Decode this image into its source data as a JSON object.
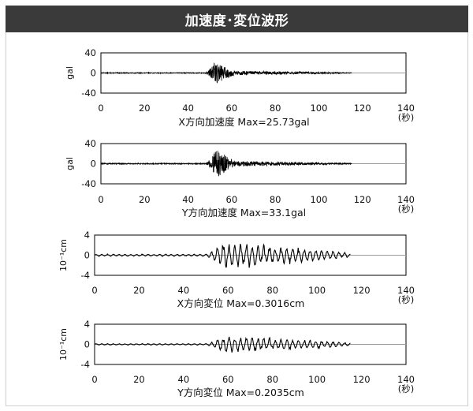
{
  "header": {
    "title": "加速度･変位波形"
  },
  "colors": {
    "header_bg": "#3a3a3a",
    "signal": "#000000",
    "axis": "#000000",
    "zero_line": "#999999"
  },
  "chart_data": [
    {
      "type": "line",
      "title": "X方向加速度 Max=25.73gal",
      "ylabel": "gal",
      "xunit": "(秒)",
      "xlim": [
        0,
        140
      ],
      "ylim": [
        -40,
        40
      ],
      "xticks": [
        "0",
        "20",
        "40",
        "60",
        "80",
        "100",
        "120",
        "140"
      ],
      "yticks": [
        "40",
        "0",
        "-40"
      ],
      "series": [
        {
          "values_summary": {
            "signal_end_s": 115,
            "strong_motion_start_s": 48,
            "strong_motion_peak_s": 52,
            "strong_motion_end_s": 62,
            "peak_abs": 25.73
          }
        }
      ]
    },
    {
      "type": "line",
      "title": "Y方向加速度 Max=33.1gal",
      "ylabel": "gal",
      "xunit": "(秒)",
      "xlim": [
        0,
        140
      ],
      "ylim": [
        -40,
        40
      ],
      "xticks": [
        "0",
        "20",
        "40",
        "60",
        "80",
        "100",
        "120",
        "140"
      ],
      "yticks": [
        "40",
        "0",
        "-40"
      ],
      "series": [
        {
          "values_summary": {
            "signal_end_s": 115,
            "strong_motion_start_s": 48,
            "strong_motion_peak_s": 53,
            "strong_motion_end_s": 62,
            "peak_abs": 33.1
          }
        }
      ]
    },
    {
      "type": "line",
      "title": "X方向変位 Max=0.3016cm",
      "ylabel": "10⁻¹cm",
      "xunit": "(秒)",
      "xlim": [
        0,
        140
      ],
      "ylim": [
        -4,
        4
      ],
      "xticks": [
        "0",
        "20",
        "40",
        "60",
        "80",
        "100",
        "120",
        "140"
      ],
      "yticks": [
        "4",
        "0",
        "-4"
      ],
      "series": [
        {
          "values_summary": {
            "signal_end_s": 115,
            "strong_motion_start_s": 50,
            "strong_motion_peak_s": 58,
            "strong_motion_end_s": 100,
            "peak_abs": 3.016
          }
        }
      ]
    },
    {
      "type": "line",
      "title": "Y方向変位 Max=0.2035cm",
      "ylabel": "10⁻¹cm",
      "xunit": "(秒)",
      "xlim": [
        0,
        140
      ],
      "ylim": [
        -4,
        4
      ],
      "xticks": [
        "0",
        "20",
        "40",
        "60",
        "80",
        "100",
        "120",
        "140"
      ],
      "yticks": [
        "4",
        "0",
        "-4"
      ],
      "series": [
        {
          "values_summary": {
            "signal_end_s": 115,
            "strong_motion_start_s": 50,
            "strong_motion_peak_s": 58,
            "strong_motion_end_s": 100,
            "peak_abs": 2.035
          }
        }
      ]
    }
  ]
}
